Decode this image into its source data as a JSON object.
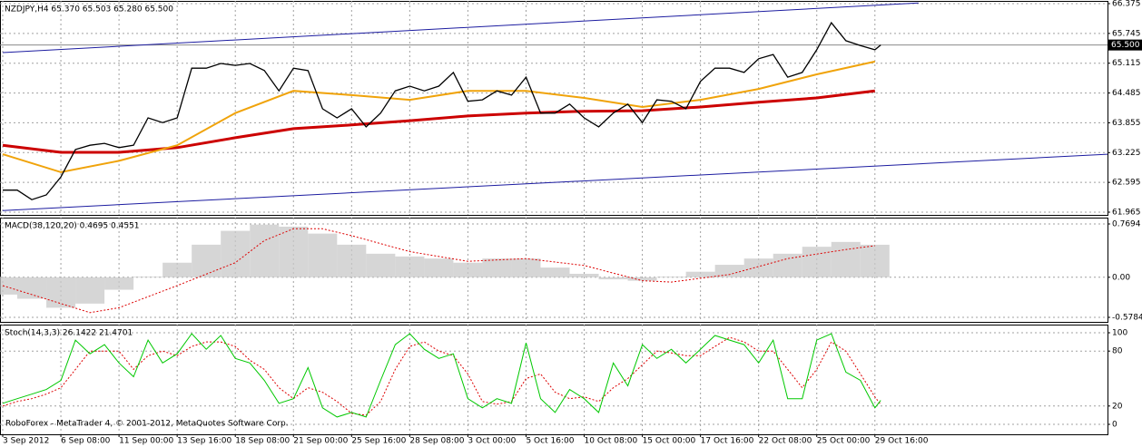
{
  "chart_data": [
    {
      "type": "line",
      "title": "NZDJPY,H4 65.370 65.503 65.280 65.500",
      "xlim": [
        0,
        380
      ],
      "ylim": [
        61.965,
        66.375
      ],
      "yticks": [
        66.375,
        65.745,
        65.115,
        64.485,
        63.855,
        63.225,
        62.595,
        61.965
      ],
      "grid": true,
      "price_line": {
        "value": 65.5,
        "label": "65.500"
      },
      "series": [
        {
          "kind": "line",
          "color": "#1c1ca0",
          "x": [
            0,
            315
          ],
          "values": [
            65.34,
            66.39
          ]
        },
        {
          "kind": "line",
          "color": "#1c1ca0",
          "x": [
            0,
            380
          ],
          "values": [
            62.0,
            63.19
          ]
        },
        {
          "kind": "line",
          "color": "#cc0000",
          "width": 3,
          "x": [
            0,
            20,
            40,
            60,
            80,
            100,
            120,
            140,
            160,
            180,
            200,
            220,
            240,
            260,
            280,
            300
          ],
          "values": [
            63.38,
            63.23,
            63.23,
            63.33,
            63.54,
            63.73,
            63.81,
            63.9,
            64.0,
            64.06,
            64.1,
            64.11,
            64.19,
            64.29,
            64.38,
            64.53
          ]
        },
        {
          "kind": "line",
          "color": "#f0a30a",
          "width": 2,
          "x": [
            0,
            20,
            40,
            60,
            80,
            100,
            120,
            140,
            160,
            180,
            200,
            220,
            240,
            260,
            280,
            300
          ],
          "values": [
            63.19,
            62.81,
            63.05,
            63.38,
            64.06,
            64.53,
            64.44,
            64.34,
            64.53,
            64.53,
            64.38,
            64.19,
            64.34,
            64.57,
            64.88,
            65.15
          ]
        },
        {
          "kind": "line",
          "color": "#000000",
          "width": 1.3,
          "x": [
            0,
            5,
            10,
            15,
            20,
            25,
            30,
            35,
            40,
            45,
            50,
            55,
            60,
            65,
            70,
            75,
            80,
            85,
            90,
            95,
            100,
            105,
            110,
            115,
            120,
            125,
            130,
            135,
            140,
            145,
            150,
            155,
            160,
            165,
            170,
            175,
            180,
            185,
            190,
            195,
            200,
            205,
            210,
            215,
            220,
            225,
            230,
            235,
            240,
            245,
            250,
            255,
            260,
            265,
            270,
            275,
            280,
            285,
            290,
            295,
            300,
            302
          ],
          "values": [
            62.43,
            62.43,
            62.23,
            62.33,
            62.71,
            63.29,
            63.38,
            63.42,
            63.33,
            63.38,
            63.96,
            63.86,
            63.96,
            65.01,
            65.01,
            65.11,
            65.07,
            65.11,
            64.96,
            64.53,
            65.01,
            64.96,
            64.15,
            63.96,
            64.15,
            63.77,
            64.06,
            64.53,
            64.63,
            64.53,
            64.63,
            64.92,
            64.31,
            64.34,
            64.53,
            64.44,
            64.82,
            64.06,
            64.06,
            64.25,
            63.96,
            63.77,
            64.06,
            64.25,
            63.86,
            64.34,
            64.31,
            64.15,
            64.73,
            65.01,
            65.01,
            64.92,
            65.21,
            65.3,
            64.82,
            64.92,
            65.4,
            65.97,
            65.59,
            65.49,
            65.4,
            65.5
          ]
        }
      ]
    },
    {
      "type": "bar",
      "title": "MACD(38,120,20) 0.4695 0.4551",
      "xlim": [
        0,
        380
      ],
      "ylim": [
        -0.5784,
        0.7694
      ],
      "yticks": [
        0.7694,
        {
          "value": 0,
          "label": "0.00"
        },
        -0.5784
      ],
      "grid": true,
      "series": [
        {
          "kind": "bar",
          "color": "#c8c8c8",
          "x": [
            0,
            10,
            20,
            30,
            40,
            50,
            60,
            70,
            80,
            90,
            100,
            110,
            120,
            130,
            140,
            150,
            160,
            170,
            180,
            190,
            200,
            210,
            220,
            230,
            240,
            250,
            260,
            270,
            280,
            290,
            300
          ],
          "values": [
            -0.25,
            -0.31,
            -0.44,
            -0.38,
            -0.18,
            0.01,
            0.21,
            0.47,
            0.67,
            0.76,
            0.73,
            0.63,
            0.47,
            0.34,
            0.3,
            0.27,
            0.21,
            0.27,
            0.27,
            0.14,
            0.05,
            -0.03,
            -0.05,
            0.01,
            0.08,
            0.18,
            0.27,
            0.34,
            0.44,
            0.51,
            0.4695
          ]
        },
        {
          "kind": "line",
          "color": "#dd0000",
          "dashed": true,
          "x": [
            0,
            20,
            30,
            40,
            60,
            80,
            90,
            100,
            110,
            120,
            140,
            160,
            180,
            200,
            220,
            230,
            250,
            270,
            290,
            300
          ],
          "values": [
            -0.12,
            -0.38,
            -0.51,
            -0.44,
            -0.12,
            0.21,
            0.53,
            0.7,
            0.7,
            0.6,
            0.37,
            0.23,
            0.27,
            0.17,
            -0.05,
            -0.07,
            0.04,
            0.27,
            0.4,
            0.4551
          ]
        }
      ]
    },
    {
      "type": "line",
      "title": "Stoch(14,3,3) 26.1422 21.4701",
      "xlim": [
        0,
        380
      ],
      "ylim": [
        0,
        100
      ],
      "yticks": [
        100,
        80,
        20,
        0
      ],
      "grid": true,
      "xticks": [
        {
          "value": 0,
          "label": "3 Sep 2012"
        },
        {
          "value": 20,
          "label": "6 Sep 08:00"
        },
        {
          "value": 40,
          "label": "11 Sep 00:00"
        },
        {
          "value": 60,
          "label": "13 Sep 16:00"
        },
        {
          "value": 80,
          "label": "18 Sep 08:00"
        },
        {
          "value": 100,
          "label": "21 Sep 00:00"
        },
        {
          "value": 120,
          "label": "25 Sep 16:00"
        },
        {
          "value": 140,
          "label": "28 Sep 08:00"
        },
        {
          "value": 160,
          "label": "3 Oct 00:00"
        },
        {
          "value": 180,
          "label": "5 Oct 16:00"
        },
        {
          "value": 200,
          "label": "10 Oct 08:00"
        },
        {
          "value": 220,
          "label": "15 Oct 00:00"
        },
        {
          "value": 240,
          "label": "17 Oct 16:00"
        },
        {
          "value": 260,
          "label": "22 Oct 08:00"
        },
        {
          "value": 280,
          "label": "25 Oct 00:00"
        },
        {
          "value": 300,
          "label": "29 Oct 16:00"
        }
      ],
      "series": [
        {
          "kind": "line",
          "color": "#dd0000",
          "dashed": true,
          "x": [
            0,
            5,
            10,
            15,
            20,
            25,
            30,
            35,
            40,
            45,
            50,
            55,
            60,
            65,
            70,
            75,
            80,
            85,
            90,
            95,
            100,
            105,
            110,
            115,
            120,
            125,
            130,
            135,
            140,
            145,
            150,
            155,
            160,
            165,
            170,
            175,
            180,
            185,
            190,
            195,
            200,
            205,
            210,
            215,
            220,
            225,
            230,
            235,
            240,
            245,
            250,
            255,
            260,
            265,
            270,
            275,
            280,
            285,
            290,
            295,
            300,
            302
          ],
          "values": [
            20,
            25,
            28,
            33,
            40,
            60,
            80,
            80,
            80,
            60,
            75,
            80,
            75,
            85,
            90,
            90,
            85,
            70,
            60,
            40,
            28,
            40,
            35,
            25,
            12,
            10,
            25,
            60,
            85,
            90,
            80,
            75,
            55,
            25,
            22,
            25,
            50,
            55,
            35,
            28,
            30,
            25,
            40,
            50,
            65,
            80,
            78,
            75,
            75,
            85,
            95,
            90,
            80,
            80,
            60,
            40,
            60,
            90,
            80,
            55,
            30,
            21.4701
          ]
        },
        {
          "kind": "line",
          "color": "#00c800",
          "x": [
            0,
            5,
            10,
            15,
            20,
            25,
            30,
            35,
            40,
            45,
            50,
            55,
            60,
            65,
            70,
            75,
            80,
            85,
            90,
            95,
            100,
            105,
            110,
            115,
            120,
            125,
            130,
            135,
            140,
            145,
            150,
            155,
            160,
            165,
            170,
            175,
            180,
            185,
            190,
            195,
            200,
            205,
            210,
            215,
            220,
            225,
            230,
            235,
            240,
            245,
            250,
            255,
            260,
            265,
            270,
            275,
            280,
            285,
            290,
            295,
            300,
            302
          ],
          "values": [
            23,
            28,
            33,
            38,
            48,
            92,
            77,
            87,
            67,
            52,
            92,
            67,
            77,
            99,
            82,
            97,
            72,
            67,
            48,
            23,
            28,
            62,
            18,
            8,
            13,
            8,
            48,
            87,
            99,
            82,
            72,
            77,
            28,
            18,
            28,
            23,
            89,
            28,
            13,
            38,
            28,
            13,
            67,
            42,
            87,
            72,
            82,
            67,
            82,
            97,
            92,
            87,
            67,
            92,
            28,
            28,
            92,
            99,
            57,
            48,
            18,
            26.1422
          ]
        }
      ]
    }
  ],
  "footer": "RoboForex - MetaTrader 4, © 2001-2012, MetaQuotes Software Corp."
}
